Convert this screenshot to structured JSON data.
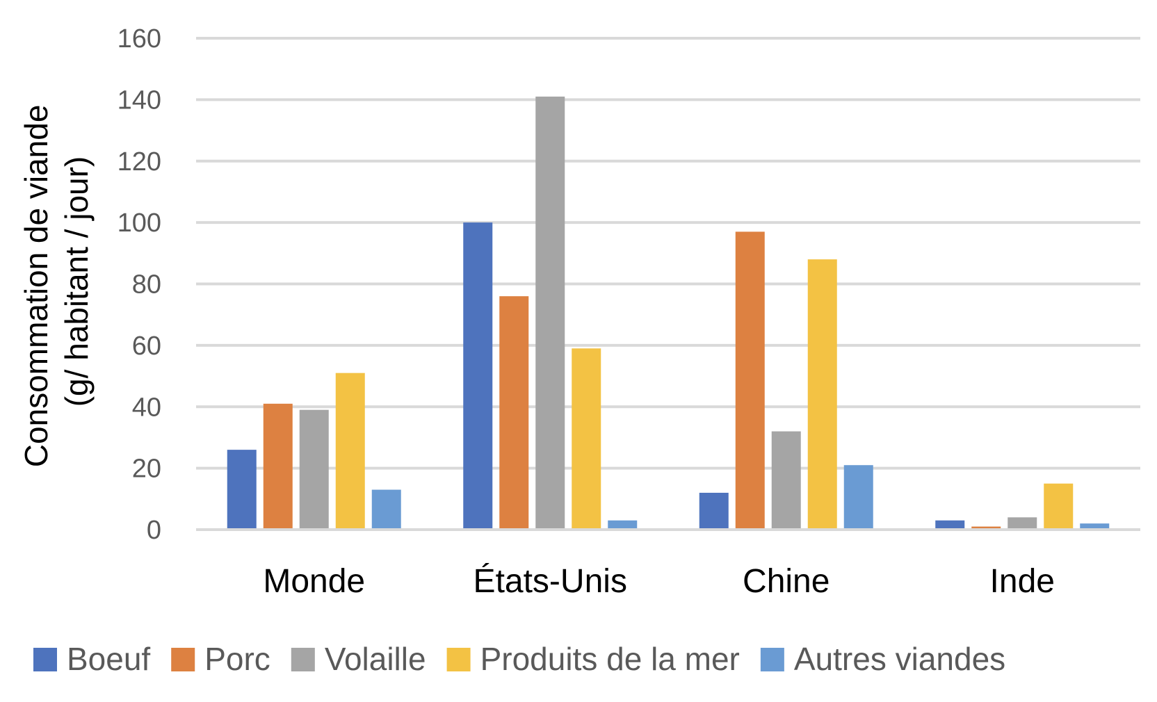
{
  "chart_data": {
    "type": "bar",
    "title": "",
    "xlabel": "",
    "ylabel_lines": [
      "Consommation de viande",
      "(g/ habitant / jour)"
    ],
    "ylim": [
      0,
      160
    ],
    "yticks": [
      0,
      20,
      40,
      60,
      80,
      100,
      120,
      140,
      160
    ],
    "categories": [
      "Monde",
      "États-Unis",
      "Chine",
      "Inde"
    ],
    "series": [
      {
        "name": "Boeuf",
        "color": "#4e73bd",
        "values": [
          26,
          100,
          12,
          3
        ]
      },
      {
        "name": "Porc",
        "color": "#dd8141",
        "values": [
          41,
          76,
          97,
          1
        ]
      },
      {
        "name": "Volaille",
        "color": "#a5a5a5",
        "values": [
          39,
          141,
          32,
          4
        ]
      },
      {
        "name": "Produits de la mer",
        "color": "#f3c244",
        "values": [
          51,
          59,
          88,
          15
        ]
      },
      {
        "name": "Autres viandes",
        "color": "#6a9bd3",
        "values": [
          13,
          3,
          21,
          2
        ]
      }
    ],
    "grid": true,
    "legend_position": "bottom"
  }
}
